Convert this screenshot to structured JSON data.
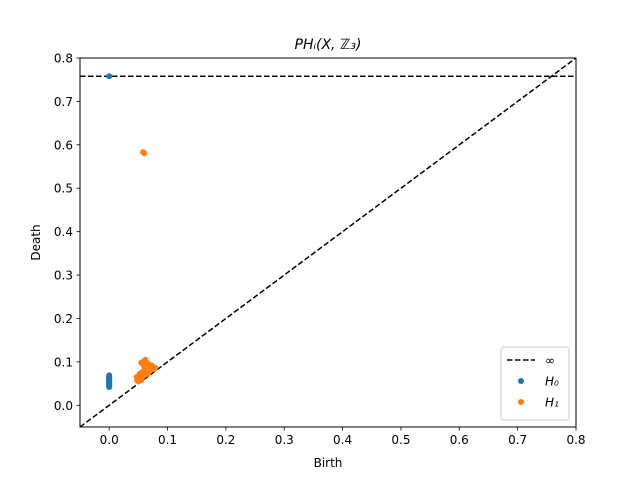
{
  "chart_data": {
    "type": "scatter",
    "title": "PHᵢ(X, ℤ₃)",
    "xlabel": "Birth",
    "ylabel": "Death",
    "xlim": [
      -0.05,
      0.8
    ],
    "ylim": [
      -0.05,
      0.8
    ],
    "xticks": [
      0.0,
      0.1,
      0.2,
      0.3,
      0.4,
      0.5,
      0.6,
      0.7,
      0.8
    ],
    "xtick_labels": [
      "0.0",
      "0.1",
      "0.2",
      "0.3",
      "0.4",
      "0.5",
      "0.6",
      "0.7",
      "0.8"
    ],
    "yticks": [
      0.0,
      0.1,
      0.2,
      0.3,
      0.4,
      0.5,
      0.6,
      0.7,
      0.8
    ],
    "ytick_labels": [
      "0.0",
      "0.1",
      "0.2",
      "0.3",
      "0.4",
      "0.5",
      "0.6",
      "0.7",
      "0.8"
    ],
    "grid": false,
    "legend_placement": "lower-right",
    "infinity_death": 0.758,
    "diagonal": true,
    "legend": [
      {
        "key": "infinity",
        "label": "∞",
        "style": "dashed-line",
        "color": "#000000"
      },
      {
        "key": "h0",
        "label": "H₀",
        "style": "marker",
        "color": "#1f77b4"
      },
      {
        "key": "h1",
        "label": "H₁",
        "style": "marker",
        "color": "#ff7f0e"
      }
    ],
    "series": [
      {
        "name": "H₀",
        "color": "#1f77b4",
        "points": [
          [
            0.0,
            0.758
          ],
          [
            0.0,
            0.069
          ],
          [
            0.0,
            0.066
          ],
          [
            0.0,
            0.064
          ],
          [
            0.0,
            0.062
          ],
          [
            0.0,
            0.06
          ],
          [
            0.0,
            0.058
          ],
          [
            0.0,
            0.056
          ],
          [
            0.0,
            0.054
          ],
          [
            0.0,
            0.052
          ],
          [
            0.0,
            0.05
          ],
          [
            0.0,
            0.048
          ],
          [
            0.0,
            0.046
          ],
          [
            0.0,
            0.044
          ],
          [
            0.0,
            0.042
          ]
        ]
      },
      {
        "name": "H₁",
        "color": "#ff7f0e",
        "points": [
          [
            0.058,
            0.583
          ],
          [
            0.06,
            0.581
          ],
          [
            0.047,
            0.065
          ],
          [
            0.049,
            0.06
          ],
          [
            0.048,
            0.057
          ],
          [
            0.051,
            0.068
          ],
          [
            0.052,
            0.072
          ],
          [
            0.054,
            0.062
          ],
          [
            0.055,
            0.058
          ],
          [
            0.056,
            0.076
          ],
          [
            0.055,
            0.098
          ],
          [
            0.058,
            0.1
          ],
          [
            0.062,
            0.105
          ],
          [
            0.06,
            0.09
          ],
          [
            0.061,
            0.082
          ],
          [
            0.063,
            0.071
          ],
          [
            0.064,
            0.078
          ],
          [
            0.066,
            0.086
          ],
          [
            0.068,
            0.094
          ],
          [
            0.07,
            0.09
          ],
          [
            0.072,
            0.084
          ],
          [
            0.073,
            0.092
          ],
          [
            0.075,
            0.088
          ],
          [
            0.077,
            0.083
          ],
          [
            0.079,
            0.086
          ],
          [
            0.065,
            0.098
          ],
          [
            0.067,
            0.074
          ],
          [
            0.058,
            0.067
          ],
          [
            0.05,
            0.055
          ],
          [
            0.069,
            0.081
          ]
        ]
      }
    ]
  }
}
